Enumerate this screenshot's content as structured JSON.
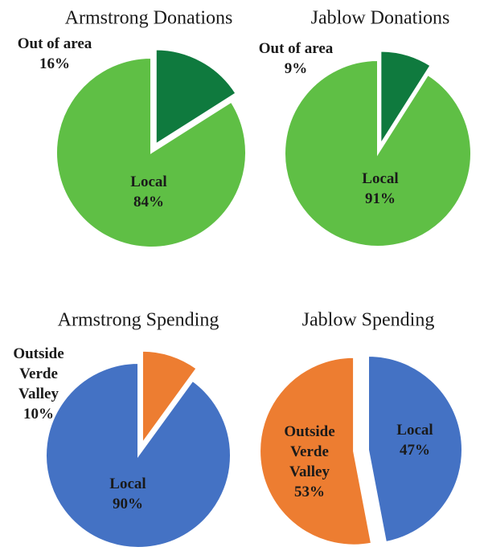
{
  "chart_data": [
    {
      "type": "pie",
      "title": "Armstrong Donations",
      "slices": [
        {
          "label": "Out of area",
          "value": 16,
          "color": "#0f7a3e",
          "exploded": true
        },
        {
          "label": "Local",
          "value": 84,
          "color": "#5fbf45",
          "exploded": false
        }
      ]
    },
    {
      "type": "pie",
      "title": "Jablow Donations",
      "slices": [
        {
          "label": "Out of area",
          "value": 9,
          "color": "#0f7a3e",
          "exploded": true
        },
        {
          "label": "Local",
          "value": 91,
          "color": "#5fbf45",
          "exploded": false
        }
      ]
    },
    {
      "type": "pie",
      "title": "Armstrong Spending",
      "slices": [
        {
          "label": "Outside Verde Valley",
          "value": 10,
          "color": "#ed7d31",
          "exploded": true
        },
        {
          "label": "Local",
          "value": 90,
          "color": "#4472c4",
          "exploded": false
        }
      ]
    },
    {
      "type": "pie",
      "title": "Jablow Spending",
      "slices": [
        {
          "label": "Local",
          "value": 47,
          "color": "#4472c4",
          "exploded": false
        },
        {
          "label": "Outside Verde Valley",
          "value": 53,
          "color": "#ed7d31",
          "exploded": true
        }
      ]
    }
  ]
}
